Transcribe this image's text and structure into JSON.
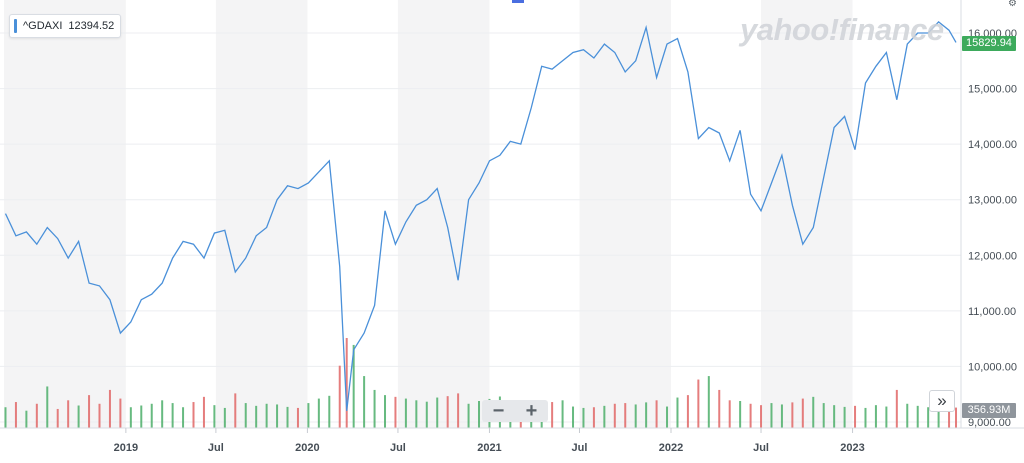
{
  "legend": {
    "symbol": "^GDAXI",
    "value": "12394.52",
    "color": "#4a90d9"
  },
  "watermark": "yahoo!finance",
  "price_badge": {
    "label": "15829.94",
    "color": "#3daa5c"
  },
  "volume_badge": {
    "label": "356.93M",
    "color": "#8f959c"
  },
  "zoom": {
    "minus_label": "−",
    "plus_label": "+"
  },
  "nav_button": {
    "label": "»",
    "icon": "double-chevron-right-icon"
  },
  "colors": {
    "line": "#4a90d9",
    "up_volume": "#4cae6a",
    "down_volume": "#e06666",
    "band": "#f4f4f5",
    "grid": "#eceef1"
  },
  "chart_data": {
    "type": "line",
    "title": "",
    "xlabel": "",
    "ylabel": "",
    "series": [
      {
        "name": "^GDAXI",
        "x": [
          "2018-05-04",
          "2018-05-25",
          "2018-06-15",
          "2018-07-06",
          "2018-07-27",
          "2018-08-17",
          "2018-09-07",
          "2018-09-28",
          "2018-10-19",
          "2018-11-09",
          "2018-11-30",
          "2018-12-21",
          "2019-01-11",
          "2019-02-01",
          "2019-02-22",
          "2019-03-15",
          "2019-04-05",
          "2019-04-26",
          "2019-05-17",
          "2019-06-07",
          "2019-06-28",
          "2019-07-19",
          "2019-08-09",
          "2019-08-30",
          "2019-09-20",
          "2019-10-11",
          "2019-11-01",
          "2019-11-22",
          "2019-12-13",
          "2020-01-03",
          "2020-01-24",
          "2020-02-14",
          "2020-03-06",
          "2020-03-20",
          "2020-04-03",
          "2020-04-24",
          "2020-05-15",
          "2020-06-05",
          "2020-06-26",
          "2020-07-17",
          "2020-08-07",
          "2020-08-28",
          "2020-09-18",
          "2020-10-09",
          "2020-10-30",
          "2020-11-20",
          "2020-12-11",
          "2021-01-01",
          "2021-01-22",
          "2021-02-12",
          "2021-03-05",
          "2021-03-26",
          "2021-04-16",
          "2021-05-07",
          "2021-05-28",
          "2021-06-18",
          "2021-07-09",
          "2021-07-30",
          "2021-08-20",
          "2021-09-10",
          "2021-10-01",
          "2021-10-22",
          "2021-11-12",
          "2021-12-03",
          "2021-12-24",
          "2022-01-14",
          "2022-02-04",
          "2022-02-25",
          "2022-03-18",
          "2022-04-08",
          "2022-04-29",
          "2022-05-20",
          "2022-06-10",
          "2022-07-01",
          "2022-07-22",
          "2022-08-12",
          "2022-09-02",
          "2022-09-23",
          "2022-10-14",
          "2022-11-04",
          "2022-11-25",
          "2022-12-16",
          "2023-01-06",
          "2023-01-27",
          "2023-02-17",
          "2023-03-10",
          "2023-03-31",
          "2023-04-21",
          "2023-05-12",
          "2023-06-02",
          "2023-06-23",
          "2023-07-14",
          "2023-07-28"
        ],
        "values": [
          12750,
          12350,
          12420,
          12200,
          12500,
          12300,
          11950,
          12250,
          11500,
          11450,
          11200,
          10600,
          10800,
          11200,
          11300,
          11500,
          11950,
          12250,
          12200,
          11950,
          12400,
          12450,
          11700,
          11950,
          12350,
          12500,
          13000,
          13250,
          13200,
          13300,
          13500,
          13700,
          11800,
          9200,
          10300,
          10600,
          11100,
          12800,
          12200,
          12600,
          12900,
          13000,
          13200,
          12500,
          11550,
          13000,
          13300,
          13700,
          13800,
          14050,
          14000,
          14650,
          15400,
          15350,
          15500,
          15650,
          15700,
          15550,
          15800,
          15650,
          15300,
          15500,
          16100,
          15200,
          15800,
          15900,
          15300,
          14100,
          14300,
          14200,
          13700,
          14250,
          13100,
          12800,
          13300,
          13800,
          12900,
          12200,
          12500,
          13400,
          14300,
          14500,
          13900,
          15100,
          15400,
          15650,
          14800,
          15800,
          16000,
          16000,
          16200,
          16050,
          15830
        ]
      }
    ],
    "volume_millions": [
      60,
      75,
      50,
      70,
      120,
      55,
      80,
      65,
      95,
      70,
      110,
      85,
      60,
      65,
      70,
      80,
      72,
      60,
      75,
      90,
      66,
      58,
      100,
      72,
      64,
      70,
      68,
      61,
      58,
      72,
      85,
      93,
      180,
      260,
      240,
      150,
      110,
      95,
      90,
      85,
      80,
      76,
      88,
      92,
      100,
      70,
      78,
      84,
      91,
      70,
      66,
      72,
      68,
      75,
      80,
      62,
      58,
      60,
      64,
      70,
      72,
      68,
      74,
      80,
      62,
      88,
      95,
      140,
      150,
      110,
      80,
      78,
      70,
      66,
      72,
      68,
      74,
      85,
      90,
      72,
      66,
      61,
      64,
      58,
      66,
      62,
      110,
      70,
      64,
      60,
      62,
      58,
      59
    ],
    "y_ticks": [
      "16,000.00",
      "15,000.00",
      "14,000.00",
      "13,000.00",
      "12,000.00",
      "11,000.00",
      "10,000.00",
      "9,000.00"
    ],
    "y_tick_values": [
      16000,
      15000,
      14000,
      13000,
      12000,
      11000,
      10000,
      9000
    ],
    "ylim": [
      9000,
      16500
    ],
    "x_ticks": [
      "2019",
      "Jul",
      "2020",
      "Jul",
      "2021",
      "Jul",
      "2022",
      "Jul",
      "2023"
    ],
    "x_tick_dates": [
      "2019-01-01",
      "2019-07-01",
      "2020-01-01",
      "2020-07-01",
      "2021-01-01",
      "2021-07-01",
      "2022-01-01",
      "2022-07-01",
      "2023-01-01"
    ],
    "xlim": [
      "2018-05-01",
      "2023-08-01"
    ],
    "grid": true,
    "last_price": 15829.94,
    "last_volume": "356.93M"
  }
}
